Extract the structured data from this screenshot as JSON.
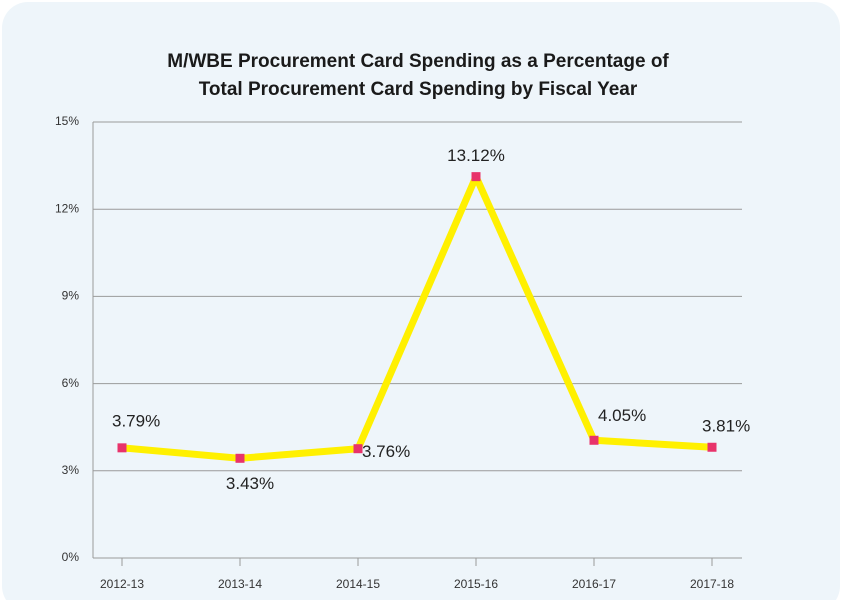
{
  "chart_data": {
    "type": "line",
    "title": [
      "M/WBE Procurement Card Spending as a Percentage of",
      "Total Procurement Card Spending by Fiscal Year"
    ],
    "categories": [
      "2012-13",
      "2013-14",
      "2014-15",
      "2015-16",
      "2016-17",
      "2017-18"
    ],
    "series": [
      {
        "name": "M/WBE share",
        "color": "#fff000",
        "marker_color": "#e8336b",
        "values": [
          3.79,
          3.43,
          3.76,
          13.12,
          4.05,
          3.81
        ],
        "value_labels": [
          "3.79%",
          "3.43%",
          "3.76%",
          "13.12%",
          "4.05%",
          "3.81%"
        ]
      }
    ],
    "ylim": [
      0,
      15
    ],
    "yticks": [
      {
        "value": 0,
        "label": "0%"
      },
      {
        "value": 3,
        "label": "3%"
      },
      {
        "value": 6,
        "label": "6%"
      },
      {
        "value": 9,
        "label": "9%"
      },
      {
        "value": 12,
        "label": "12%"
      },
      {
        "value": 15,
        "label": "15%"
      }
    ],
    "grid": true
  }
}
